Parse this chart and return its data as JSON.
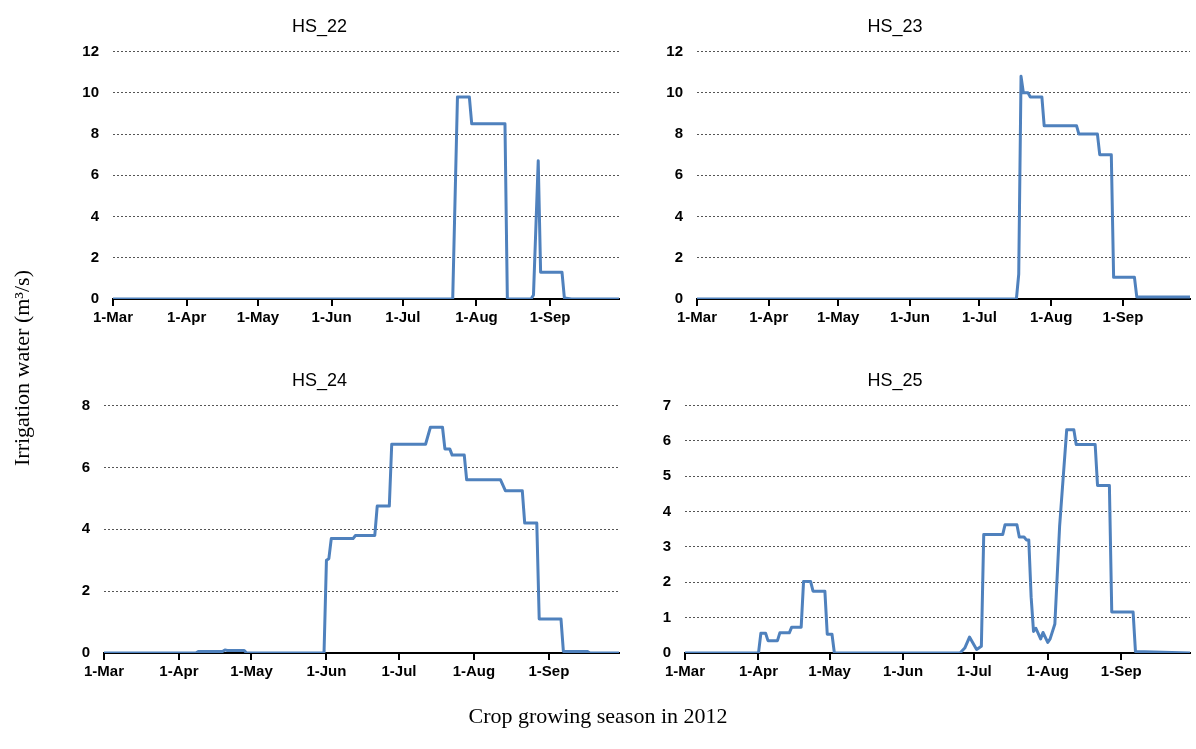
{
  "chart_data": [
    {
      "type": "line",
      "title": "HS_22",
      "ylabel": "Irrigation water (m³/s)",
      "xlim": [
        "2012-03-01",
        "2012-09-30"
      ],
      "ylim": [
        0,
        12
      ],
      "yticks": [
        0,
        2,
        4,
        6,
        8,
        10,
        12
      ],
      "xticks": [
        {
          "value": "2012-03-01",
          "label": "1-Mar"
        },
        {
          "value": "2012-04-01",
          "label": "1-Apr"
        },
        {
          "value": "2012-05-01",
          "label": "1-May"
        },
        {
          "value": "2012-06-01",
          "label": "1-Jun"
        },
        {
          "value": "2012-07-01",
          "label": "1-Jul"
        },
        {
          "value": "2012-08-01",
          "label": "1-Aug"
        },
        {
          "value": "2012-09-01",
          "label": "1-Sep"
        }
      ],
      "grid": "y",
      "marker": "none",
      "line_style": "solid",
      "series": [
        {
          "color": "#4f81bd",
          "x": [
            "2012-03-01",
            "2012-07-22",
            "2012-07-24",
            "2012-07-29",
            "2012-07-30",
            "2012-08-13",
            "2012-08-14",
            "2012-08-24",
            "2012-08-25",
            "2012-08-27",
            "2012-08-28",
            "2012-09-06",
            "2012-09-07",
            "2012-09-10",
            "2012-09-30"
          ],
          "values": [
            0,
            0,
            9.8,
            9.8,
            8.5,
            8.5,
            0,
            0,
            0.2,
            6.7,
            1.3,
            1.3,
            0.05,
            0,
            0
          ]
        }
      ]
    },
    {
      "type": "line",
      "title": "HS_23",
      "xlim": [
        "2012-03-01",
        "2012-09-30"
      ],
      "ylim": [
        0,
        12
      ],
      "yticks": [
        0,
        2,
        4,
        6,
        8,
        10,
        12
      ],
      "xticks": [
        {
          "value": "2012-03-01",
          "label": "1-Mar"
        },
        {
          "value": "2012-04-01",
          "label": "1-Apr"
        },
        {
          "value": "2012-05-01",
          "label": "1-May"
        },
        {
          "value": "2012-06-01",
          "label": "1-Jun"
        },
        {
          "value": "2012-07-01",
          "label": "1-Jul"
        },
        {
          "value": "2012-08-01",
          "label": "1-Aug"
        },
        {
          "value": "2012-09-01",
          "label": "1-Sep"
        }
      ],
      "grid": "y",
      "marker": "none",
      "line_style": "solid",
      "series": [
        {
          "color": "#4f81bd",
          "x": [
            "2012-03-01",
            "2012-07-17",
            "2012-07-18",
            "2012-07-19",
            "2012-07-20",
            "2012-07-22",
            "2012-07-23",
            "2012-07-28",
            "2012-07-29",
            "2012-08-12",
            "2012-08-13",
            "2012-08-21",
            "2012-08-22",
            "2012-08-27",
            "2012-08-28",
            "2012-09-06",
            "2012-09-07",
            "2012-09-30"
          ],
          "values": [
            0,
            0,
            1.2,
            10.8,
            10,
            10,
            9.8,
            9.8,
            8.4,
            8.4,
            8,
            8,
            7,
            7,
            1.05,
            1.05,
            0.1,
            0.1
          ]
        }
      ]
    },
    {
      "type": "line",
      "title": "HS_24",
      "xlabel": "Crop growing season in 2012",
      "xlim": [
        "2012-03-01",
        "2012-09-30"
      ],
      "ylim": [
        0,
        8
      ],
      "yticks": [
        0,
        2,
        4,
        6,
        8
      ],
      "xticks": [
        {
          "value": "2012-03-01",
          "label": "1-Mar"
        },
        {
          "value": "2012-04-01",
          "label": "1-Apr"
        },
        {
          "value": "2012-05-01",
          "label": "1-May"
        },
        {
          "value": "2012-06-01",
          "label": "1-Jun"
        },
        {
          "value": "2012-07-01",
          "label": "1-Jul"
        },
        {
          "value": "2012-08-01",
          "label": "1-Aug"
        },
        {
          "value": "2012-09-01",
          "label": "1-Sep"
        }
      ],
      "grid": "y",
      "marker": "none",
      "line_style": "solid",
      "series": [
        {
          "color": "#4f81bd",
          "x": [
            "2012-03-01",
            "2012-04-08",
            "2012-04-09",
            "2012-04-19",
            "2012-04-20",
            "2012-04-21",
            "2012-04-28",
            "2012-04-29",
            "2012-05-31",
            "2012-06-01",
            "2012-06-02",
            "2012-06-03",
            "2012-06-12",
            "2012-06-13",
            "2012-06-21",
            "2012-06-22",
            "2012-06-27",
            "2012-06-28",
            "2012-07-12",
            "2012-07-14",
            "2012-07-19",
            "2012-07-20",
            "2012-07-22",
            "2012-07-23",
            "2012-07-28",
            "2012-07-29",
            "2012-08-12",
            "2012-08-14",
            "2012-08-21",
            "2012-08-22",
            "2012-08-27",
            "2012-08-28",
            "2012-09-06",
            "2012-09-07",
            "2012-09-17",
            "2012-09-18",
            "2012-09-30"
          ],
          "values": [
            0,
            0,
            0.05,
            0.05,
            0.1,
            0.08,
            0.08,
            0,
            0,
            3,
            3.05,
            3.7,
            3.7,
            3.8,
            3.8,
            4.75,
            4.75,
            6.75,
            6.75,
            7.3,
            7.3,
            6.6,
            6.6,
            6.4,
            6.4,
            5.6,
            5.6,
            5.25,
            5.25,
            4.2,
            4.2,
            1.1,
            1.1,
            0.05,
            0.05,
            0,
            0
          ]
        }
      ]
    },
    {
      "type": "line",
      "title": "HS_25",
      "xlim": [
        "2012-03-01",
        "2012-09-30"
      ],
      "ylim": [
        0,
        7
      ],
      "yticks": [
        0,
        1,
        2,
        3,
        4,
        5,
        6,
        7
      ],
      "xticks": [
        {
          "value": "2012-03-01",
          "label": "1-Mar"
        },
        {
          "value": "2012-04-01",
          "label": "1-Apr"
        },
        {
          "value": "2012-05-01",
          "label": "1-May"
        },
        {
          "value": "2012-06-01",
          "label": "1-Jun"
        },
        {
          "value": "2012-07-01",
          "label": "1-Jul"
        },
        {
          "value": "2012-08-01",
          "label": "1-Aug"
        },
        {
          "value": "2012-09-01",
          "label": "1-Sep"
        }
      ],
      "grid": "y",
      "marker": "none",
      "line_style": "solid",
      "series": [
        {
          "color": "#4f81bd",
          "x": [
            "2012-03-01",
            "2012-04-01",
            "2012-04-02",
            "2012-04-04",
            "2012-04-05",
            "2012-04-09",
            "2012-04-10",
            "2012-04-14",
            "2012-04-15",
            "2012-04-19",
            "2012-04-20",
            "2012-04-23",
            "2012-04-24",
            "2012-04-29",
            "2012-04-30",
            "2012-05-02",
            "2012-05-03",
            "2012-06-25",
            "2012-06-27",
            "2012-06-29",
            "2012-07-02",
            "2012-07-04",
            "2012-07-05",
            "2012-07-13",
            "2012-07-14",
            "2012-07-19",
            "2012-07-20",
            "2012-07-22",
            "2012-07-23",
            "2012-07-24",
            "2012-07-25",
            "2012-07-26",
            "2012-07-27",
            "2012-07-29",
            "2012-07-30",
            "2012-08-01",
            "2012-08-02",
            "2012-08-04",
            "2012-08-06",
            "2012-08-09",
            "2012-08-12",
            "2012-08-13",
            "2012-08-21",
            "2012-08-22",
            "2012-08-27",
            "2012-08-28",
            "2012-09-06",
            "2012-09-07",
            "2012-09-30"
          ],
          "values": [
            0,
            0,
            0.56,
            0.56,
            0.35,
            0.35,
            0.57,
            0.57,
            0.73,
            0.73,
            2.02,
            2.02,
            1.75,
            1.75,
            0.53,
            0.53,
            0,
            0,
            0.14,
            0.45,
            0.1,
            0.19,
            3.35,
            3.35,
            3.63,
            3.63,
            3.28,
            3.28,
            3.2,
            3.2,
            1.58,
            0.61,
            0.7,
            0.4,
            0.58,
            0.3,
            0.4,
            0.82,
            3.58,
            6.32,
            6.32,
            5.9,
            5.9,
            4.74,
            4.74,
            1.16,
            1.16,
            0.04,
            0
          ]
        }
      ]
    }
  ]
}
